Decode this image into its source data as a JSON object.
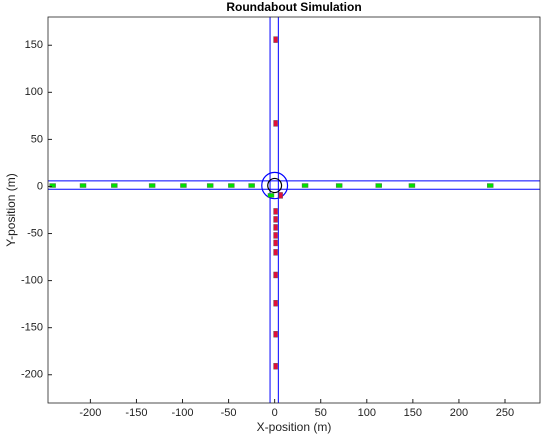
{
  "chart_data": {
    "type": "scatter",
    "title": "Roundabout Simulation",
    "xlabel": "X-position (m)",
    "ylabel": "Y-position (m)",
    "xlim": [
      -246,
      288
    ],
    "ylim": [
      -230,
      180
    ],
    "xticks": [
      -200,
      -150,
      -100,
      -50,
      0,
      50,
      100,
      150,
      200,
      250
    ],
    "yticks": [
      -200,
      -150,
      -100,
      -50,
      0,
      50,
      100,
      150
    ],
    "grid": false,
    "roads": [
      {
        "color": "#0000ff",
        "x": [
          -5,
          -5
        ],
        "y": [
          -230,
          180
        ]
      },
      {
        "color": "#0000ff",
        "x": [
          4,
          4
        ],
        "y": [
          -230,
          180
        ]
      },
      {
        "color": "#0000ff",
        "x": [
          -246,
          288
        ],
        "y": [
          6,
          6
        ]
      },
      {
        "color": "#0000ff",
        "x": [
          -246,
          288
        ],
        "y": [
          -3,
          -3
        ]
      }
    ],
    "circles": [
      {
        "color": "#0000ff",
        "cx": 0,
        "cy": 1,
        "r": 14
      },
      {
        "color": "#000000",
        "cx": 0,
        "cy": 1,
        "r": 7.5
      }
    ],
    "series": [
      {
        "color": "#00e000",
        "orientation": "horizontal",
        "x": [
          -241,
          -208,
          -174,
          -133,
          -99,
          -70,
          -47,
          -25,
          33,
          70,
          113,
          149,
          234,
          -4
        ],
        "y": [
          1,
          1,
          1,
          1,
          1,
          1,
          1,
          1,
          1,
          1,
          1,
          1,
          1,
          -9.5
        ]
      },
      {
        "color": "#e0103a",
        "orientation": "vertical",
        "x": [
          1,
          1,
          6.5,
          1,
          1,
          1,
          1,
          1,
          1,
          1,
          1,
          1,
          1
        ],
        "y": [
          156,
          67,
          -9.5,
          -26.5,
          -35,
          -43.5,
          -52,
          -60,
          -70,
          -94,
          -124,
          -157,
          -191
        ]
      }
    ]
  }
}
